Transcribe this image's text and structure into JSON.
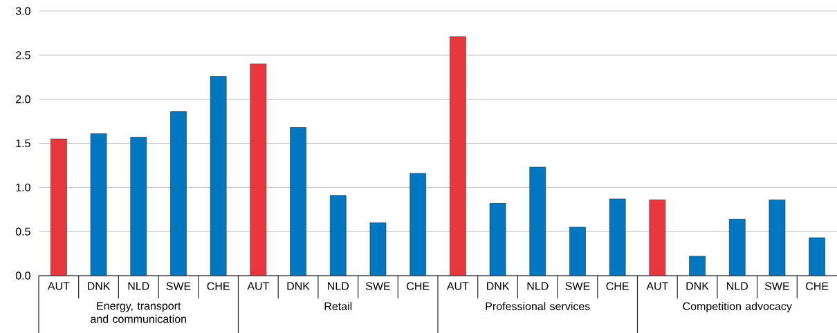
{
  "chart_data": {
    "type": "bar",
    "categories": [
      "AUT",
      "DNK",
      "NLD",
      "SWE",
      "CHE",
      "AUT",
      "DNK",
      "NLD",
      "SWE",
      "CHE",
      "AUT",
      "DNK",
      "NLD",
      "SWE",
      "CHE",
      "AUT",
      "DNK",
      "NLD",
      "SWE",
      "CHE"
    ],
    "values": [
      1.55,
      1.61,
      1.57,
      1.86,
      2.26,
      2.4,
      1.68,
      0.91,
      0.6,
      1.16,
      2.71,
      0.82,
      1.23,
      0.55,
      0.87,
      0.86,
      0.22,
      0.64,
      0.86,
      0.43
    ],
    "colors": [
      "#e8383d",
      "#0077be",
      "#0077be",
      "#0077be",
      "#0077be",
      "#e8383d",
      "#0077be",
      "#0077be",
      "#0077be",
      "#0077be",
      "#e8383d",
      "#0077be",
      "#0077be",
      "#0077be",
      "#0077be",
      "#e8383d",
      "#0077be",
      "#0077be",
      "#0077be",
      "#0077be"
    ],
    "annotations": [
      "Energy, transport and communication",
      "Retail",
      "Professional services",
      "Competition advocacy"
    ],
    "ylim": [
      0,
      3
    ],
    "yticks": [
      {
        "value": 0,
        "label": "0.0"
      },
      {
        "value": 0.5,
        "label": "0.5"
      },
      {
        "value": 1,
        "label": "1.0"
      },
      {
        "value": 1.5,
        "label": "1.5"
      },
      {
        "value": 2,
        "label": "2.0"
      },
      {
        "value": 2.5,
        "label": "2.5"
      },
      {
        "value": 3,
        "label": "3.0"
      }
    ],
    "grid": "y"
  }
}
